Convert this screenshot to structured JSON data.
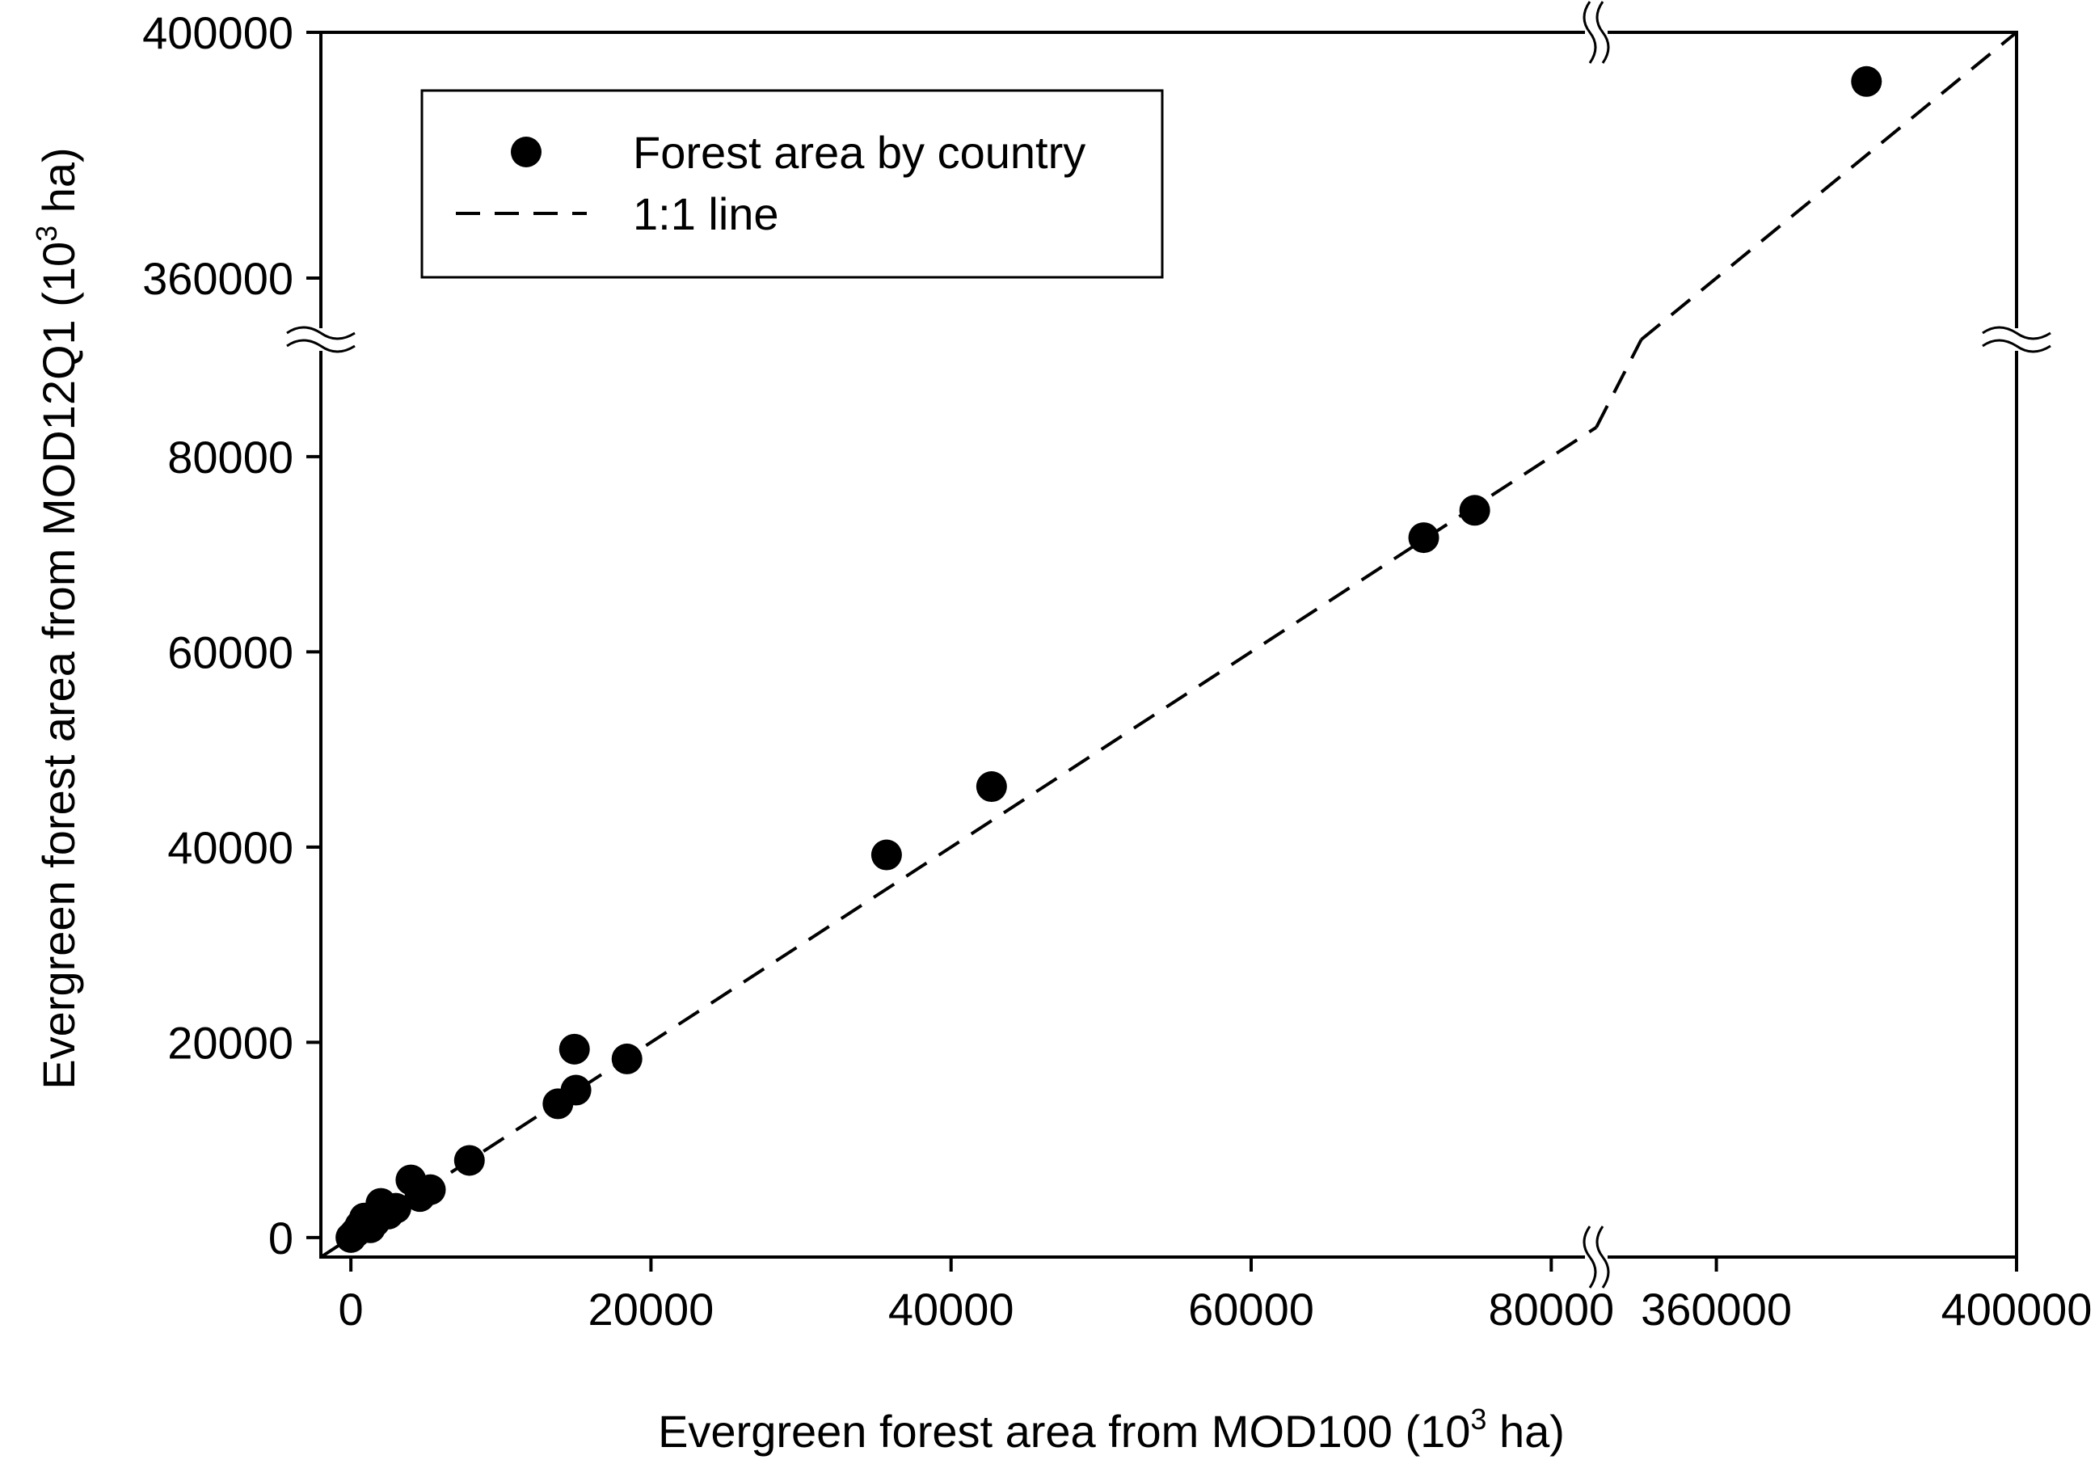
{
  "chart_data": {
    "type": "scatter",
    "xlabel": "Evergreen forest area from MOD100 (10",
    "xlabel_sup": "3",
    "xlabel_end": " ha)",
    "ylabel": "Evergreen forest area from MOD12Q1 (10",
    "ylabel_sup": "3",
    "ylabel_end": " ha)",
    "x_axis": {
      "broken": true,
      "lower_range": [
        -2000,
        83000
      ],
      "upper_range": [
        344000,
        400000
      ],
      "ticks": [
        0,
        20000,
        40000,
        60000,
        80000,
        360000,
        400000
      ],
      "tick_labels": [
        "0",
        "20000",
        "40000",
        "60000",
        "80000",
        "360000",
        "400000"
      ]
    },
    "y_axis": {
      "broken": true,
      "lower_range": [
        -2000,
        92000
      ],
      "upper_range": [
        350000,
        400000
      ],
      "ticks": [
        0,
        20000,
        40000,
        60000,
        80000,
        360000,
        400000
      ],
      "tick_labels": [
        "0",
        "20000",
        "40000",
        "60000",
        "80000",
        "360000",
        "400000"
      ]
    },
    "series": [
      {
        "name": "Forest area by country",
        "marker": "filled-circle",
        "color": "#000000",
        "points": [
          {
            "x": 0,
            "y": 0
          },
          {
            "x": 300,
            "y": 500
          },
          {
            "x": 600,
            "y": 1200
          },
          {
            "x": 900,
            "y": 2000
          },
          {
            "x": 1300,
            "y": 1000
          },
          {
            "x": 1600,
            "y": 1600
          },
          {
            "x": 2000,
            "y": 3500
          },
          {
            "x": 2500,
            "y": 2400
          },
          {
            "x": 3000,
            "y": 3000
          },
          {
            "x": 4000,
            "y": 5900
          },
          {
            "x": 4600,
            "y": 4200
          },
          {
            "x": 5300,
            "y": 4900
          },
          {
            "x": 7900,
            "y": 7900
          },
          {
            "x": 13800,
            "y": 13700
          },
          {
            "x": 14900,
            "y": 19300
          },
          {
            "x": 15000,
            "y": 15100
          },
          {
            "x": 18400,
            "y": 18300
          },
          {
            "x": 35700,
            "y": 39200
          },
          {
            "x": 42700,
            "y": 46200
          },
          {
            "x": 71500,
            "y": 71700
          },
          {
            "x": 74900,
            "y": 74500
          },
          {
            "x": 380000,
            "y": 392000
          }
        ]
      },
      {
        "name": "1:1 line",
        "style": "dashed",
        "color": "#000000",
        "points": [
          {
            "x": -2000,
            "y": -2000
          },
          {
            "x": 400000,
            "y": 400000
          }
        ]
      }
    ],
    "legend": {
      "placement": "top-left",
      "entries": [
        "Forest area by country",
        "1:1 line"
      ]
    },
    "grid": false
  }
}
